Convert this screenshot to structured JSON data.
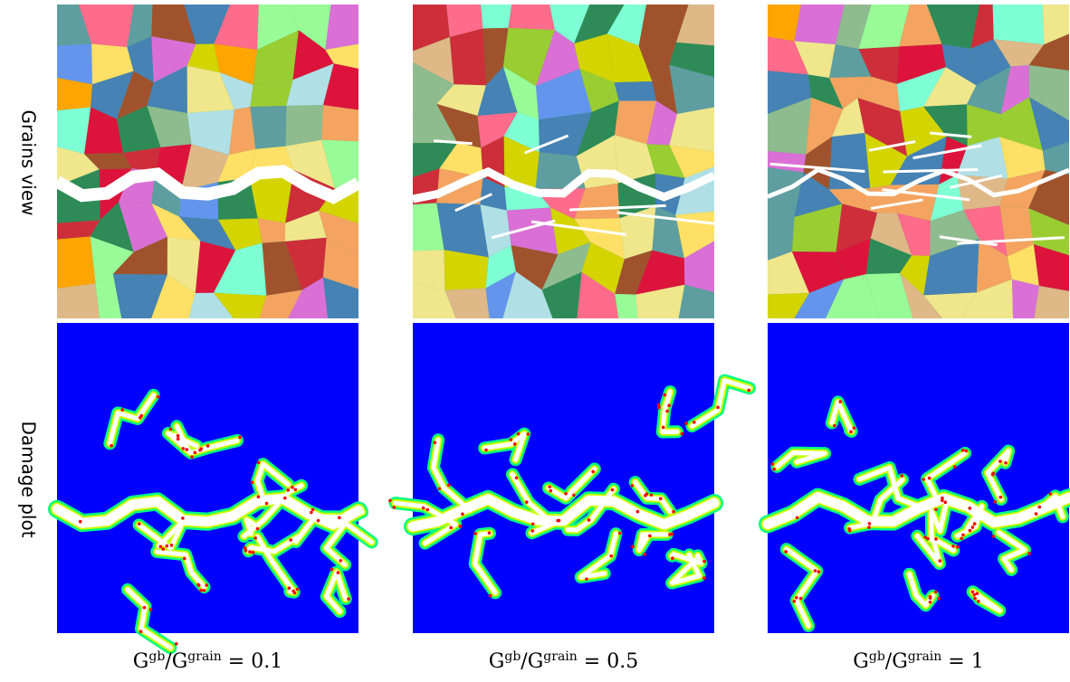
{
  "row_labels": [
    "Grains view",
    "Damage plot"
  ],
  "columns": [
    {
      "base1": "G",
      "sup1": "gb",
      "base2": "/G",
      "sup2": "grain",
      "rest": " = 0.1"
    },
    {
      "base1": "G",
      "sup1": "gb",
      "base2": "/G",
      "sup2": "grain",
      "rest": " = 0.5"
    },
    {
      "base1": "G",
      "sup1": "gb",
      "base2": "/G",
      "sup2": "grain",
      "rest": " = 1"
    }
  ]
}
